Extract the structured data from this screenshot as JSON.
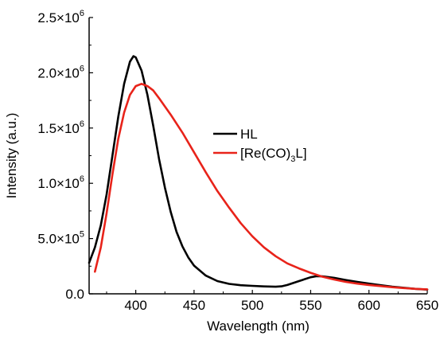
{
  "chart_data": {
    "type": "line",
    "title": "",
    "xlabel": "Wavelength (nm)",
    "ylabel": "Intensity (a.u.)",
    "xlim": [
      360,
      650
    ],
    "ylim": [
      0,
      2500000
    ],
    "x_ticks": [
      400,
      450,
      500,
      550,
      600,
      650
    ],
    "x_tick_labels": [
      "400",
      "450",
      "500",
      "550",
      "600",
      "650"
    ],
    "y_ticks": [
      0,
      500000,
      1000000,
      1500000,
      2000000,
      2500000
    ],
    "y_tick_labels": [
      {
        "base": "0.0",
        "exp": ""
      },
      {
        "base": "5.0×10",
        "exp": "5"
      },
      {
        "base": "1.0×10",
        "exp": "6"
      },
      {
        "base": "1.5×10",
        "exp": "6"
      },
      {
        "base": "2.0×10",
        "exp": "6"
      },
      {
        "base": "2.5×10",
        "exp": "6"
      }
    ],
    "grid": false,
    "legend_position": "center-right",
    "series": [
      {
        "name": "HL",
        "legend": {
          "main": "HL",
          "sub": "",
          "tail": ""
        },
        "color": "#000000",
        "x": [
          360,
          365,
          370,
          375,
          380,
          385,
          390,
          395,
          398,
          400,
          405,
          410,
          415,
          420,
          425,
          430,
          435,
          440,
          445,
          450,
          460,
          470,
          480,
          490,
          500,
          510,
          520,
          525,
          530,
          540,
          550,
          555,
          560,
          570,
          580,
          590,
          600,
          610,
          620,
          630,
          640,
          650
        ],
        "y": [
          280000,
          420000,
          620000,
          900000,
          1250000,
          1600000,
          1900000,
          2100000,
          2150000,
          2140000,
          2020000,
          1800000,
          1520000,
          1220000,
          960000,
          740000,
          560000,
          430000,
          330000,
          255000,
          165000,
          115000,
          90000,
          78000,
          72000,
          67000,
          64000,
          68000,
          80000,
          115000,
          150000,
          160000,
          158000,
          145000,
          125000,
          108000,
          92000,
          78000,
          65000,
          55000,
          45000,
          38000
        ]
      },
      {
        "name": "[Re(CO)3L]",
        "legend": {
          "main": "[Re(CO)",
          "sub": "3",
          "tail": "L]"
        },
        "color": "#e8231a",
        "x": [
          365,
          370,
          375,
          380,
          385,
          390,
          395,
          400,
          405,
          410,
          415,
          420,
          430,
          440,
          450,
          460,
          470,
          480,
          490,
          500,
          510,
          520,
          530,
          540,
          550,
          560,
          570,
          580,
          590,
          600,
          610,
          620,
          630,
          640,
          650
        ],
        "y": [
          200000,
          420000,
          730000,
          1080000,
          1400000,
          1640000,
          1800000,
          1880000,
          1900000,
          1880000,
          1840000,
          1770000,
          1620000,
          1460000,
          1280000,
          1100000,
          930000,
          780000,
          640000,
          520000,
          420000,
          340000,
          275000,
          230000,
          190000,
          155000,
          130000,
          108000,
          92000,
          80000,
          70000,
          60000,
          52000,
          45000,
          40000
        ]
      }
    ]
  }
}
